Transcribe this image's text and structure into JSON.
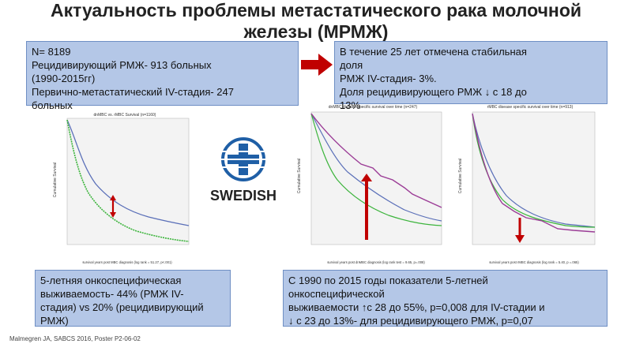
{
  "title": {
    "line1": "Актуальность проблемы метастатического рака молочной",
    "line2": "железы (МРМЖ)"
  },
  "box1": {
    "lines": [
      "N= 8189",
      "Рецидивирующий РМЖ- 913 больных",
      "(1990-2015гг)",
      "Первично-метастатический IV-стадия- 247",
      "больных"
    ]
  },
  "box2": {
    "lines": [
      "В течение 25 лет отмечена стабильная",
      "доля",
      "РМЖ IV-стадия- 3%.",
      "Доля рецидивирующего РМЖ  ↓ с 18 до",
      "13%"
    ]
  },
  "box3": {
    "lines": [
      "5-летняя онкоспецифическая",
      "выживаемость- 44% (РМЖ IV-",
      "стадия) vs 20% (рецидивирующий",
      "РМЖ)"
    ]
  },
  "box4": {
    "lines": [
      "С 1990 по 2015 годы показатели 5-летней",
      "онкоспецифической",
      " выживаемости ↑с 28 до 55%, p=0,008 для IV-стадии и",
      "↓ с 23 до 13%- для рецидивирующего РМЖ, p=0,07"
    ]
  },
  "logo": {
    "text": "SWEDISH"
  },
  "footer": "Malmegren JA, SABCS 2016, Poster P2-06-02",
  "charts": {
    "c1": {
      "title": "dnMBC vs. rMBC Survival (n=1160)",
      "ylabel": "Cumulative Survival",
      "xlabel": "survival years post MBC diagnosis (log rank = 51.27, p<.001)"
    },
    "c2": {
      "title": "dnMBC disease specific survival over time (n=247)",
      "ylabel": "Cumulative Survival",
      "xlabel": "survival years post dnMBC diagnosis (log rank test = 9.65, p=.008)"
    },
    "c3": {
      "title": "rMBC disease specific survival over time (n=913)",
      "ylabel": "Cumulative Survival",
      "xlabel": "survival years post rMBC diagnosis (log rank = 5.40, p =.065)"
    }
  },
  "colors": {
    "box_fill": "#b4c7e7",
    "arrow_red": "#c00000",
    "curve_blue": "#5a6fb8",
    "curve_green": "#3cb43c",
    "curve_purple": "#9b3c96",
    "logo_blue": "#1f5fa6"
  }
}
